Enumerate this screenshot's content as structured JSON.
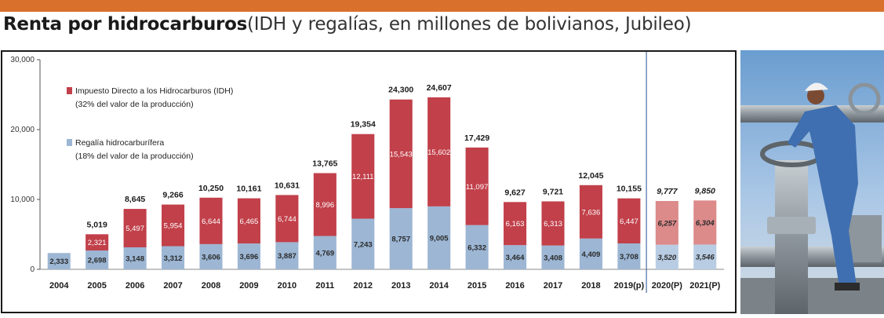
{
  "header": {
    "title": "Renta por hidrocarburos",
    "subtitle": "(IDH y regalías, en millones de bolivianos, Jubileo)"
  },
  "colors": {
    "top_bar": "#d9702c",
    "idh": "#c1404a",
    "idh_projected": "#dc8a8a",
    "regalia": "#9cb6d4",
    "regalia_projected": "#b8cde3"
  },
  "photo": {
    "icon": "oil-worker-valve-photo"
  },
  "chart_data": {
    "type": "bar",
    "stacked": true,
    "categories": [
      "2004",
      "2005",
      "2006",
      "2007",
      "2008",
      "2009",
      "2010",
      "2011",
      "2012",
      "2013",
      "2014",
      "2015",
      "2016",
      "2017",
      "2018",
      "2019(p)",
      "2020(P)",
      "2021(P)"
    ],
    "series": [
      {
        "name": "Regalía hidrocarburífera",
        "note": "(18% del valor de la producción)",
        "values": [
          2333,
          2698,
          3148,
          3312,
          3606,
          3696,
          3887,
          4769,
          7243,
          8757,
          9005,
          6332,
          3464,
          3408,
          4409,
          3708,
          3520,
          3546
        ]
      },
      {
        "name": "Impuesto Directo a los Hidrocarburos (IDH)",
        "note": "(32% del valor de la producción)",
        "values": [
          null,
          2321,
          5497,
          5954,
          6644,
          6465,
          6744,
          8996,
          12111,
          15543,
          15602,
          11097,
          6163,
          6313,
          7636,
          6447,
          6257,
          6304
        ]
      }
    ],
    "segment_labels": {
      "regalia": [
        "2,333",
        "2,698",
        "3,148",
        "3,312",
        "3,606",
        "3,696",
        "3,887",
        "4,769",
        "7,243",
        "8,757",
        "9,005",
        "6,332",
        "3,464",
        "3,408",
        "4,409",
        "3,708",
        "3,520",
        "3,546"
      ],
      "idh": [
        "",
        "2,321",
        "5,497",
        "5,954",
        "6,644",
        "6,465",
        "6,744",
        "8,996",
        "12,111",
        "15,543",
        "15,602",
        "11,097",
        "6,163",
        "6,313",
        "7,636",
        "6,447",
        "6,257",
        "6,304"
      ]
    },
    "totals": [
      null,
      5019,
      8645,
      9266,
      10250,
      10161,
      10631,
      13765,
      19354,
      24300,
      24607,
      17429,
      9627,
      9721,
      12045,
      10155,
      9777,
      9850
    ],
    "total_labels": [
      "",
      "5,019",
      "8,645",
      "9,266",
      "10,250",
      "10,161",
      "10,631",
      "13,765",
      "19,354",
      "24,300",
      "24,607",
      "17,429",
      "9,627",
      "9,721",
      "12,045",
      "10,155",
      "9,777",
      "9,850"
    ],
    "projected_categories": [
      "2020(P)",
      "2021(P)"
    ],
    "ylim": [
      0,
      30000
    ],
    "yticks": [
      0,
      10000,
      20000,
      30000
    ],
    "ytick_labels": [
      "0",
      "10,000",
      "20,000",
      "30,000"
    ],
    "grid": false,
    "legend_placement": "top-left",
    "xlabel": "",
    "ylabel": ""
  }
}
